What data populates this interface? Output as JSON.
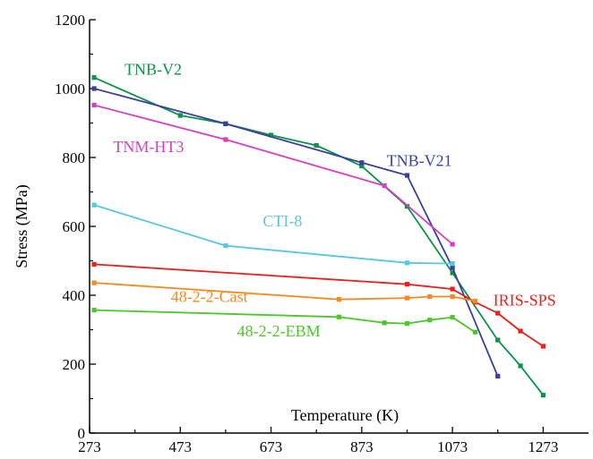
{
  "chart_data": {
    "type": "line",
    "title": "",
    "xlabel": "Temperature (K)",
    "ylabel": "Stress (MPa)",
    "xlim": [
      273,
      1373
    ],
    "ylim": [
      0,
      1200
    ],
    "xticks": [
      273,
      473,
      673,
      873,
      1073,
      1273
    ],
    "yticks": [
      0,
      200,
      400,
      600,
      800,
      1000,
      1200
    ],
    "grid": false,
    "legend": "inline labels",
    "series": [
      {
        "name": "TNB-V2",
        "color": "#0a9448",
        "x": [
          283,
          473,
          573,
          673,
          773,
          873,
          973,
          1073,
          1173,
          1223,
          1273
        ],
        "y": [
          1032,
          922,
          898,
          865,
          835,
          775,
          658,
          465,
          270,
          195,
          110
        ]
      },
      {
        "name": "TNB-V21",
        "color": "#3a3fa0",
        "x": [
          283,
          573,
          873,
          973,
          1073,
          1173
        ],
        "y": [
          1000,
          898,
          785,
          748,
          480,
          165
        ]
      },
      {
        "name": "TNM-HT3",
        "color": "#d63fbf",
        "x": [
          283,
          573,
          923,
          1073
        ],
        "y": [
          952,
          852,
          718,
          548
        ]
      },
      {
        "name": "CTI-8",
        "color": "#56c8e0",
        "x": [
          283,
          573,
          973,
          1073
        ],
        "y": [
          662,
          544,
          494,
          492
        ]
      },
      {
        "name": "IRIS-SPS",
        "color": "#e8201e",
        "x": [
          283,
          973,
          1073,
          1123,
          1173,
          1223,
          1273
        ],
        "y": [
          490,
          432,
          418,
          380,
          348,
          296,
          252
        ]
      },
      {
        "name": "48-2-2-Cast",
        "color": "#f58a1f",
        "x": [
          283,
          823,
          973,
          1023,
          1073,
          1123
        ],
        "y": [
          436,
          388,
          392,
          396,
          396,
          383
        ]
      },
      {
        "name": "48-2-2-EBM",
        "color": "#4cc82a",
        "x": [
          283,
          823,
          923,
          973,
          1023,
          1073,
          1123
        ],
        "y": [
          357,
          337,
          320,
          318,
          328,
          336,
          293
        ]
      }
    ]
  },
  "colors": {
    "axis": "#000000",
    "background": "#ffffff"
  }
}
